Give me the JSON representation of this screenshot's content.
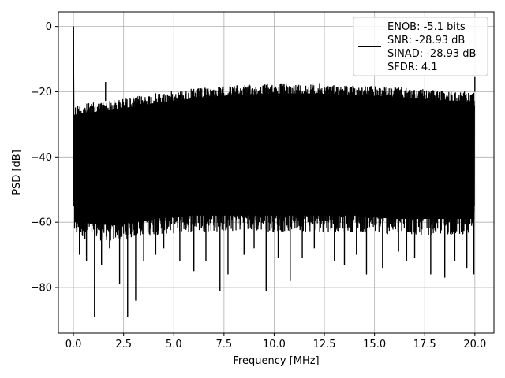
{
  "chart_data": {
    "type": "line",
    "xlabel": "Frequency [MHz]",
    "ylabel": "PSD [dB]",
    "xlim": [
      -0.75,
      20.95
    ],
    "ylim": [
      -94,
      4.5
    ],
    "xticks": [
      0.0,
      2.5,
      5.0,
      7.5,
      10.0,
      12.5,
      15.0,
      17.5,
      20.0
    ],
    "xtick_labels": [
      "0.0",
      "2.5",
      "5.0",
      "7.5",
      "10.0",
      "12.5",
      "15.0",
      "17.5",
      "20.0"
    ],
    "yticks": [
      0,
      -20,
      -40,
      -60,
      -80
    ],
    "ytick_labels": [
      "0",
      "−20",
      "−40",
      "−60",
      "−80"
    ],
    "grid": true,
    "legend_position": "top-right",
    "series": [
      {
        "color": "#000000",
        "legend_lines": [
          "ENOB: -5.1 bits",
          "SNR: -28.93 dB",
          "SINAD: -28.93 dB",
          "SFDR: 4.1"
        ],
        "peak": {
          "x": 0.0,
          "y": 0.0
        },
        "spur": {
          "x": 1.6,
          "y": -17.0
        },
        "end_spur": {
          "x": 20.0,
          "y": -15.5
        },
        "upper_envelope": [
          {
            "x": 0.05,
            "y": -24
          },
          {
            "x": 2.0,
            "y": -22.5
          },
          {
            "x": 4.0,
            "y": -20.5
          },
          {
            "x": 6.0,
            "y": -19.0
          },
          {
            "x": 8.0,
            "y": -18.0
          },
          {
            "x": 10.0,
            "y": -17.5
          },
          {
            "x": 12.0,
            "y": -17.5
          },
          {
            "x": 14.0,
            "y": -18.0
          },
          {
            "x": 16.0,
            "y": -18.5
          },
          {
            "x": 18.0,
            "y": -19.5
          },
          {
            "x": 20.0,
            "y": -20.0
          }
        ],
        "lower_envelope": [
          {
            "x": 0.05,
            "y": -62
          },
          {
            "x": 2.0,
            "y": -63
          },
          {
            "x": 4.0,
            "y": -61
          },
          {
            "x": 6.0,
            "y": -60
          },
          {
            "x": 8.0,
            "y": -60
          },
          {
            "x": 10.0,
            "y": -60
          },
          {
            "x": 12.0,
            "y": -60
          },
          {
            "x": 14.0,
            "y": -60
          },
          {
            "x": 16.0,
            "y": -61
          },
          {
            "x": 18.0,
            "y": -61
          },
          {
            "x": 20.0,
            "y": -61
          }
        ],
        "deep_nulls": [
          {
            "x": 0.3,
            "y": -70
          },
          {
            "x": 0.65,
            "y": -72
          },
          {
            "x": 1.05,
            "y": -89
          },
          {
            "x": 1.4,
            "y": -73
          },
          {
            "x": 1.8,
            "y": -68
          },
          {
            "x": 2.3,
            "y": -79
          },
          {
            "x": 2.7,
            "y": -89
          },
          {
            "x": 3.1,
            "y": -84
          },
          {
            "x": 3.5,
            "y": -72
          },
          {
            "x": 4.1,
            "y": -70
          },
          {
            "x": 4.5,
            "y": -68
          },
          {
            "x": 5.3,
            "y": -72
          },
          {
            "x": 6.0,
            "y": -75
          },
          {
            "x": 6.6,
            "y": -72
          },
          {
            "x": 7.3,
            "y": -81
          },
          {
            "x": 7.7,
            "y": -76
          },
          {
            "x": 8.5,
            "y": -70
          },
          {
            "x": 9.0,
            "y": -68
          },
          {
            "x": 9.6,
            "y": -81
          },
          {
            "x": 10.2,
            "y": -71
          },
          {
            "x": 10.8,
            "y": -78
          },
          {
            "x": 11.4,
            "y": -71
          },
          {
            "x": 12.0,
            "y": -68
          },
          {
            "x": 13.0,
            "y": -72
          },
          {
            "x": 13.5,
            "y": -73
          },
          {
            "x": 14.1,
            "y": -70
          },
          {
            "x": 14.6,
            "y": -76
          },
          {
            "x": 15.4,
            "y": -74
          },
          {
            "x": 16.2,
            "y": -69
          },
          {
            "x": 16.6,
            "y": -72
          },
          {
            "x": 17.0,
            "y": -71
          },
          {
            "x": 17.8,
            "y": -76
          },
          {
            "x": 18.5,
            "y": -77
          },
          {
            "x": 19.0,
            "y": -72
          },
          {
            "x": 19.6,
            "y": -74
          },
          {
            "x": 19.95,
            "y": -76
          }
        ]
      }
    ]
  }
}
